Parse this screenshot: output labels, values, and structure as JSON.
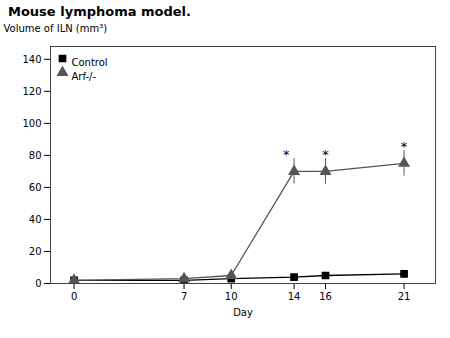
{
  "chart_data": {
    "type": "line",
    "title": "Mouse lymphoma model.",
    "xlabel": "Day",
    "ylabel": "Volume of ILN (mm³)",
    "x": [
      0,
      7,
      10,
      14,
      16,
      21
    ],
    "series": [
      {
        "name": "Control",
        "color": "#000000",
        "marker": "square",
        "values": [
          2,
          2,
          3,
          4,
          5,
          6
        ],
        "errors": [
          0.5,
          0.5,
          0.5,
          1,
          1,
          1
        ]
      },
      {
        "name": "Arf-/-",
        "color": "#555555",
        "marker": "triangle",
        "values": [
          2,
          3,
          5,
          70,
          70,
          75
        ],
        "errors": [
          0.5,
          0.5,
          1,
          8,
          8,
          8
        ]
      }
    ],
    "xlim": [
      -1.5,
      23
    ],
    "ylim": [
      0,
      148
    ],
    "xticks": [
      0,
      7,
      10,
      14,
      16,
      21
    ],
    "yticks": [
      0,
      20,
      40,
      60,
      80,
      100,
      120,
      140
    ],
    "legend": "upper left",
    "grid": false,
    "annotations": [
      {
        "text": "*",
        "x": 13.5,
        "y": 78
      },
      {
        "text": "*",
        "x": 16,
        "y": 78
      },
      {
        "text": "*",
        "x": 21,
        "y": 83
      }
    ]
  }
}
